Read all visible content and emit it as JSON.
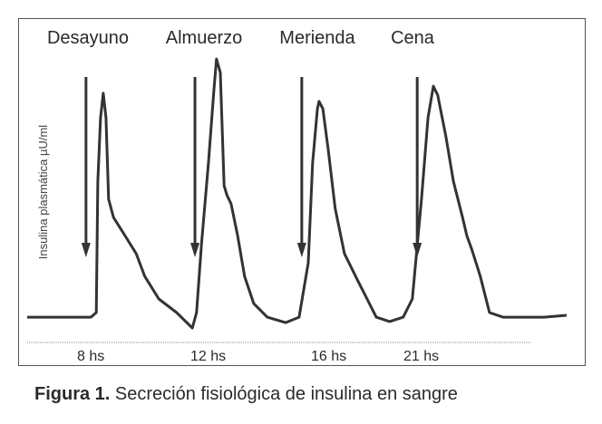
{
  "chart_data": {
    "type": "line",
    "title": "",
    "ylabel": "Insulina plasmática µU/ml",
    "xlabel": "",
    "xlim": [
      0,
      100
    ],
    "ylim": [
      -2,
      100
    ],
    "grid": false,
    "meals": [
      {
        "label": "Desayuno",
        "x": 10.9
      },
      {
        "label": "Almuerzo",
        "x": 31.1
      },
      {
        "label": "Merienda",
        "x": 50.9
      },
      {
        "label": "Cena",
        "x": 72.3
      }
    ],
    "tick_labels": [
      {
        "label": "8 hs",
        "x": 12.6
      },
      {
        "label": "12 hs",
        "x": 32.8
      },
      {
        "label": "16 hs",
        "x": 55.5
      },
      {
        "label": "21 hs",
        "x": 73.1
      }
    ],
    "series": [
      {
        "name": "Insulina",
        "x": [
          0,
          11.8,
          12.8,
          13.1,
          13.6,
          14.1,
          14.6,
          15.1,
          16.0,
          17.6,
          20.2,
          21.8,
          24.4,
          27.7,
          29.4,
          30.6,
          31.4,
          32.3,
          33.6,
          34.6,
          35.1,
          35.8,
          36.5,
          37.0,
          37.8,
          39.0,
          40.3,
          42.0,
          44.5,
          47.9,
          50.4,
          52.1,
          52.9,
          53.8,
          54.1,
          54.8,
          55.8,
          57.1,
          58.8,
          61.3,
          63.0,
          64.7,
          67.2,
          69.7,
          71.4,
          73.1,
          74.3,
          75.3,
          76.1,
          77.6,
          79.0,
          80.7,
          81.5,
          82.4,
          84.0,
          85.7,
          88.2,
          95.8,
          100
        ],
        "y": [
          3.3,
          3.3,
          5,
          53.3,
          76.7,
          85.7,
          76.7,
          46.7,
          40,
          35,
          26.7,
          18.3,
          10,
          5,
          1.7,
          -0.7,
          5,
          30,
          60,
          86.7,
          98.3,
          93.3,
          51.7,
          48.3,
          45,
          33.3,
          18.3,
          8.3,
          3.3,
          1.3,
          3.3,
          23.3,
          60,
          80,
          82.7,
          80,
          65,
          43.3,
          26.7,
          16.7,
          10,
          3.3,
          1.7,
          3.3,
          10,
          46.7,
          76.7,
          88.3,
          85,
          70,
          53.3,
          40,
          33.3,
          28.3,
          18.3,
          5,
          3.3,
          3.3,
          4
        ]
      }
    ]
  },
  "caption": {
    "prefix": "Figura 1.",
    "text": " Secreción fisiológica de insulina en sangre"
  }
}
